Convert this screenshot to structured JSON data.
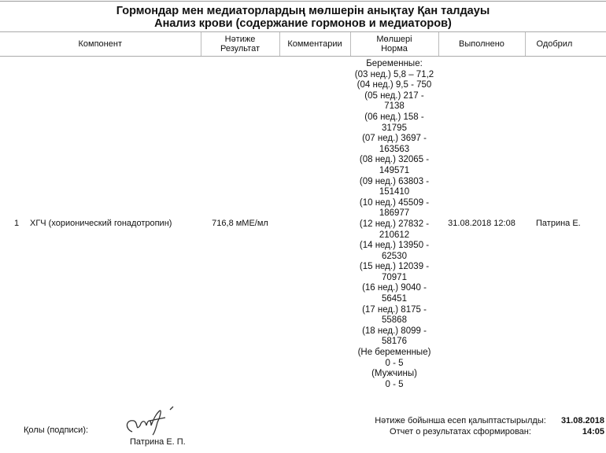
{
  "title": {
    "line1": "Гормондар мен медиаторлардың мөлшерін анықтау Қан  талдауы",
    "line2": "Анализ крови (содержание гормонов и медиаторов)"
  },
  "table": {
    "headers": {
      "component": "Компонент",
      "result_kz": "Нәтиже",
      "result_ru": "Результат",
      "comments": "Комментарии",
      "norm_kz": "Мөлшері",
      "norm_ru": "Норма",
      "done": "Выполнено",
      "approved": "Одобрил"
    },
    "rows": [
      {
        "num": "1",
        "component": "ХГЧ (хорионический гонадотропин)",
        "result": "716,8 мМЕ/мл",
        "comment": "",
        "norm_lines": [
          "Беременные:",
          "(03 нед.)  5,8 – 71,2",
          "(04 нед.)  9,5 - 750",
          "(05 нед.)  217 -",
          "7138",
          "(06 нед.)  158 -",
          "31795",
          "(07 нед.)  3697 -",
          "163563",
          "(08 нед.)  32065 -",
          "149571",
          "(09 нед.)  63803 -",
          "151410",
          "(10 нед.)  45509 -",
          "186977",
          "(12 нед.)  27832 -",
          "210612",
          "(14 нед.)  13950 -",
          "62530",
          "(15 нед.)  12039 -",
          "70971",
          "(16 нед.)  9040 -",
          "56451",
          "(17 нед.)  8175 -",
          "55868",
          "(18 нед.)  8099 -",
          "58176",
          "(Не беременные)",
          "0 - 5",
          "(Мужчины)",
          "0 - 5"
        ],
        "done": "31.08.2018 12:08",
        "approved": "Патрина Е."
      }
    ]
  },
  "footer": {
    "signature_label": "Қолы (подписи):",
    "signature_name": "Патрина Е. П.",
    "report_kz": "Нәтиже бойынша есеп қалыптастырылды:",
    "report_ru": "Отчет о результатах сформирован:",
    "report_date": "31.08.2018",
    "report_time": "14:05"
  }
}
